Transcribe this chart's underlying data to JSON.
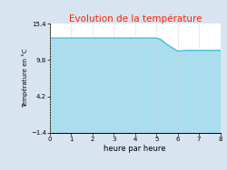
{
  "title": "Evolution de la température",
  "title_color": "#ff2200",
  "xlabel": "heure par heure",
  "ylabel": "Température en °C",
  "background_color": "#d8e4f0",
  "plot_bg_color": "#ffffff",
  "line_color": "#44bbdd",
  "fill_color": "#aaddee",
  "x": [
    0,
    1,
    2,
    3,
    4,
    5,
    5.2,
    5.5,
    6,
    6.5,
    7,
    8
  ],
  "y": [
    13.2,
    13.2,
    13.2,
    13.2,
    13.2,
    13.2,
    13.0,
    12.2,
    11.2,
    11.3,
    11.3,
    11.3
  ],
  "ylim": [
    -1.4,
    15.4
  ],
  "xlim": [
    0,
    8
  ],
  "yticks": [
    -1.4,
    4.2,
    9.8,
    15.4
  ],
  "xticks": [
    0,
    1,
    2,
    3,
    4,
    5,
    6,
    7,
    8
  ],
  "fill_baseline": -1.4,
  "line_width": 1.0,
  "tick_fontsize": 5.0,
  "xlabel_fontsize": 6.0,
  "ylabel_fontsize": 5.0,
  "title_fontsize": 7.5
}
